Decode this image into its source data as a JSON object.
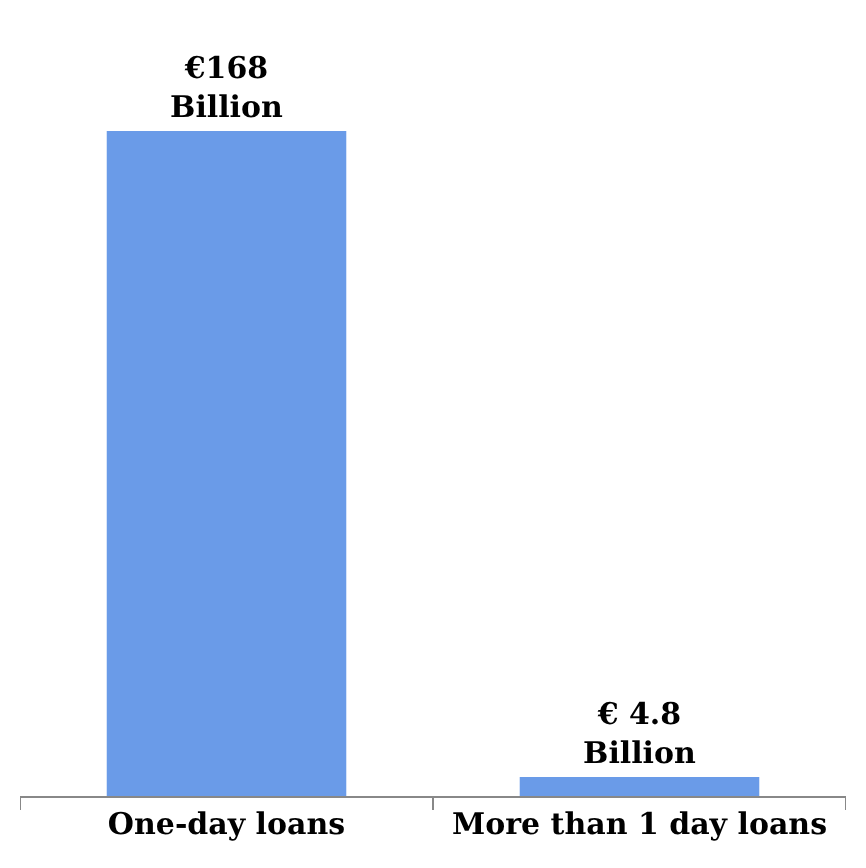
{
  "chart_data": {
    "type": "bar",
    "categories": [
      "One-day loans",
      "More than 1 day loans"
    ],
    "values": [
      168,
      4.8
    ],
    "value_labels": [
      "€168\nBillion",
      "€ 4.8\nBillion"
    ],
    "color": "#6a9be8"
  }
}
